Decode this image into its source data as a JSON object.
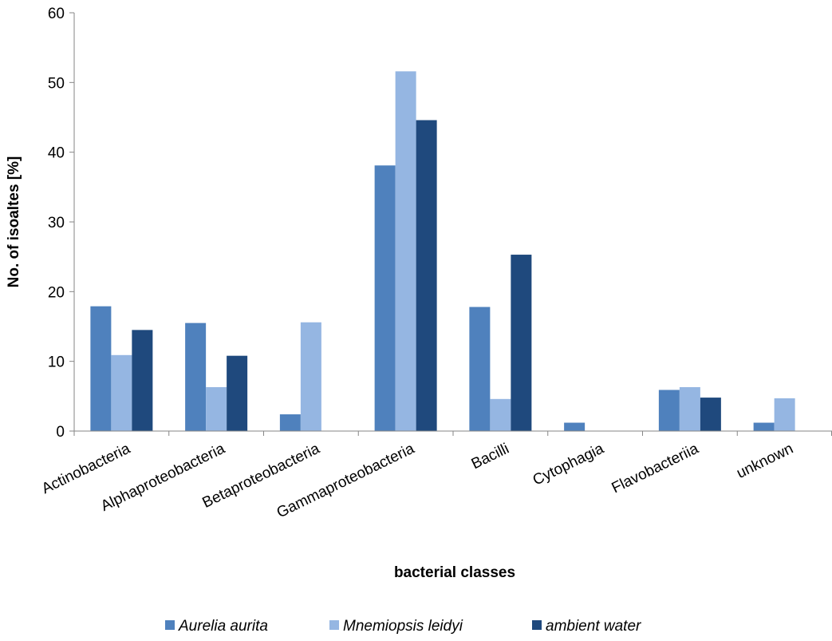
{
  "chart_data": {
    "type": "bar",
    "title": "",
    "xlabel": "bacterial classes",
    "ylabel": "No. of isoaltes [%]",
    "ylim": [
      0,
      60
    ],
    "yticks": [
      0,
      10,
      20,
      30,
      40,
      50,
      60
    ],
    "grid": false,
    "legend_position": "bottom",
    "categories": [
      "Actinobacteria",
      "Alphaproteobacteria",
      "Betaproteobacteria",
      "Gammaproteobacteria",
      "Bacilli",
      "Cytophagia",
      "Flavobacteriia",
      "unknown"
    ],
    "series": [
      {
        "name": "Aurelia aurita",
        "color": "#4f81bd",
        "values": [
          17.9,
          15.5,
          2.4,
          38.1,
          17.8,
          1.2,
          5.9,
          1.2
        ]
      },
      {
        "name": "Mnemiopsis leidyi",
        "color": "#95b6e2",
        "values": [
          10.9,
          6.3,
          15.6,
          51.6,
          4.6,
          null,
          6.3,
          4.7
        ]
      },
      {
        "name": "ambient water",
        "color": "#1f497d",
        "values": [
          14.5,
          10.8,
          null,
          44.6,
          25.3,
          null,
          4.8,
          null
        ]
      }
    ]
  }
}
